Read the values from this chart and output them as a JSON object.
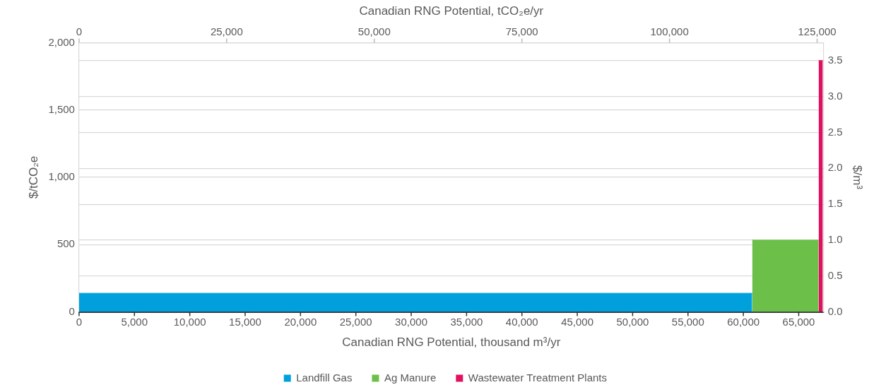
{
  "chart_data": {
    "type": "area",
    "xlabel": "Canadian RNG Potential, thousand m³/yr",
    "x2label": "Canadian RNG Potential, tCO₂e/yr",
    "ylabel": "$/tCO₂e",
    "y2label": "$/m³",
    "xlim": [
      0,
      67250
    ],
    "xticks": [
      {
        "value": 0,
        "label": "0"
      },
      {
        "value": 5000,
        "label": "5,000"
      },
      {
        "value": 10000,
        "label": "10,000"
      },
      {
        "value": 15000,
        "label": "15,000"
      },
      {
        "value": 20000,
        "label": "20,000"
      },
      {
        "value": 25000,
        "label": "25,000"
      },
      {
        "value": 30000,
        "label": "30,000"
      },
      {
        "value": 35000,
        "label": "35,000"
      },
      {
        "value": 40000,
        "label": "40,000"
      },
      {
        "value": 45000,
        "label": "45,000"
      },
      {
        "value": 50000,
        "label": "50,000"
      },
      {
        "value": 55000,
        "label": "55,000"
      },
      {
        "value": 60000,
        "label": "60,000"
      },
      {
        "value": 65000,
        "label": "65,000"
      }
    ],
    "x2lim": [
      0,
      126100
    ],
    "x2ticks": [
      {
        "value": 0,
        "label": "0"
      },
      {
        "value": 25000,
        "label": "25,000"
      },
      {
        "value": 50000,
        "label": "50,000"
      },
      {
        "value": 75000,
        "label": "75,000"
      },
      {
        "value": 100000,
        "label": "100,000"
      },
      {
        "value": 125000,
        "label": "125,000"
      }
    ],
    "ylim": [
      0,
      2000
    ],
    "yticks": [
      {
        "value": 0,
        "label": "0"
      },
      {
        "value": 500,
        "label": "500"
      },
      {
        "value": 1000,
        "label": "1,000"
      },
      {
        "value": 1500,
        "label": "1,500"
      },
      {
        "value": 2000,
        "label": "2,000"
      }
    ],
    "y2lim": [
      0,
      3.75
    ],
    "y2ticks": [
      {
        "value": 0,
        "label": "0.0"
      },
      {
        "value": 0.5,
        "label": "0.5"
      },
      {
        "value": 1,
        "label": "1.0"
      },
      {
        "value": 1.5,
        "label": "1.5"
      },
      {
        "value": 2,
        "label": "2.0"
      },
      {
        "value": 2.5,
        "label": "2.5"
      },
      {
        "value": 3,
        "label": "3.0"
      },
      {
        "value": 3.5,
        "label": "3.5"
      }
    ],
    "grid": "y",
    "legend": "bottom",
    "series": [
      {
        "name": "Landfill Gas",
        "color": "#00a0dc",
        "axis": "y2",
        "x": [
          0,
          60800
        ],
        "values": [
          0.26,
          0.26
        ]
      },
      {
        "name": "Ag Manure",
        "color": "#6cc04a",
        "axis": "y2",
        "x": [
          60800,
          66800
        ],
        "values": [
          1.0,
          1.0
        ]
      },
      {
        "name": "Wastewater Treatment Plants",
        "color": "#e0115f",
        "axis": "y2",
        "x": [
          66800,
          67180
        ],
        "values": [
          3.5,
          3.5
        ]
      }
    ]
  }
}
